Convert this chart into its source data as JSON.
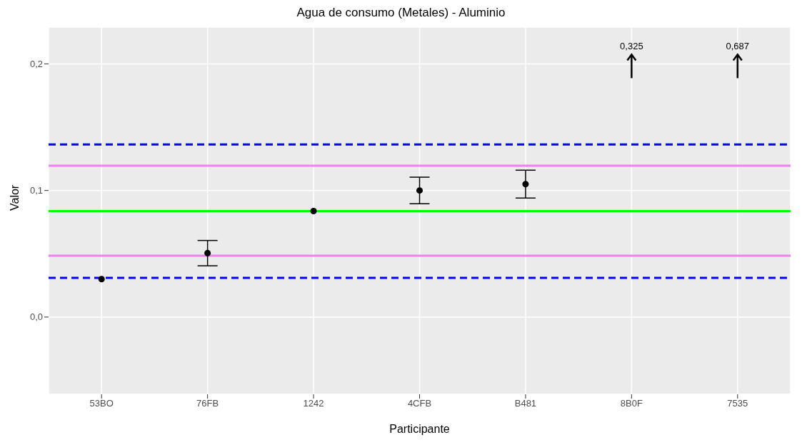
{
  "chart_data": {
    "type": "scatter",
    "title": "Agua de consumo (Metales) - Aluminio",
    "xlabel": "Participante",
    "ylabel": "Valor",
    "categories": [
      "53BO",
      "76FB",
      "1242",
      "4CFB",
      "B481",
      "8B0F",
      "7535"
    ],
    "values": [
      0.03,
      0.0505,
      0.0837,
      0.1,
      0.105,
      null,
      null
    ],
    "errors": [
      null,
      0.01,
      null,
      0.0105,
      0.011,
      null,
      null
    ],
    "color": "#000000",
    "marker": "circle",
    "grid": true,
    "legend": false,
    "ylim": [
      -0.061,
      0.229
    ],
    "yticks": [
      {
        "value": 0,
        "label": "0,0"
      },
      {
        "value": 0.1,
        "label": "0,1"
      },
      {
        "value": 0.2,
        "label": "0,2"
      }
    ],
    "ref_lines": [
      {
        "axis": "y",
        "value": 0.1364,
        "color": "#0000ff",
        "line_style": "dashed"
      },
      {
        "axis": "y",
        "value": 0.1196,
        "color": "#ee82ee",
        "line_style": "solid"
      },
      {
        "axis": "y",
        "value": 0.0837,
        "color": "#00ff00",
        "line_style": "solid"
      },
      {
        "axis": "y",
        "value": 0.0484,
        "color": "#ee82ee",
        "line_style": "solid"
      },
      {
        "axis": "y",
        "value": 0.031,
        "color": "#0000ff",
        "line_style": "dashed"
      }
    ],
    "annotations": [
      "0,325",
      "0,687"
    ]
  }
}
